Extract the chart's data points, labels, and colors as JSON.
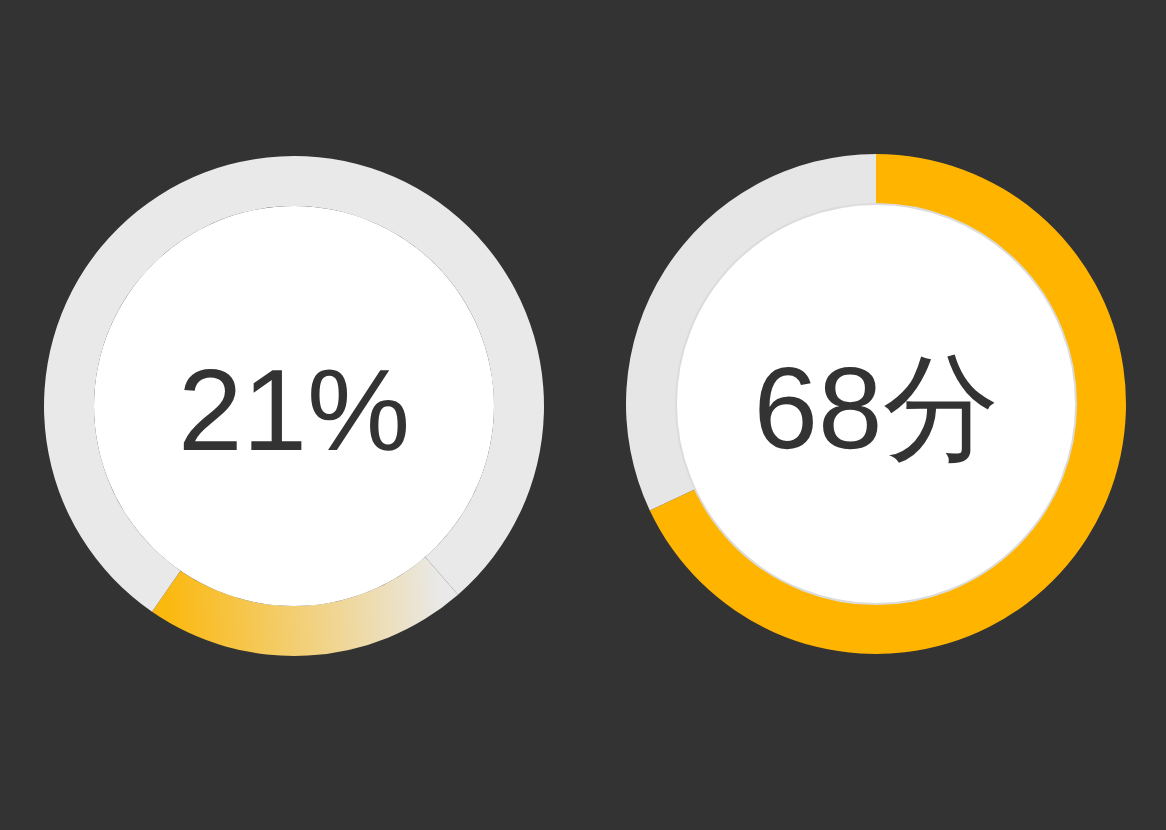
{
  "chart_data": [
    {
      "type": "donut",
      "categories": [
        null,
        null
      ],
      "values": [
        21,
        79
      ],
      "colors": [
        "#fbb80f",
        "#e9e9e9"
      ],
      "annotations": [
        "21%"
      ]
    },
    {
      "type": "donut",
      "categories": [
        null,
        null
      ],
      "values": [
        68,
        32
      ],
      "colors": [
        "#ffb400",
        "#e6e6e6"
      ],
      "annotations": [
        "68分"
      ]
    }
  ]
}
